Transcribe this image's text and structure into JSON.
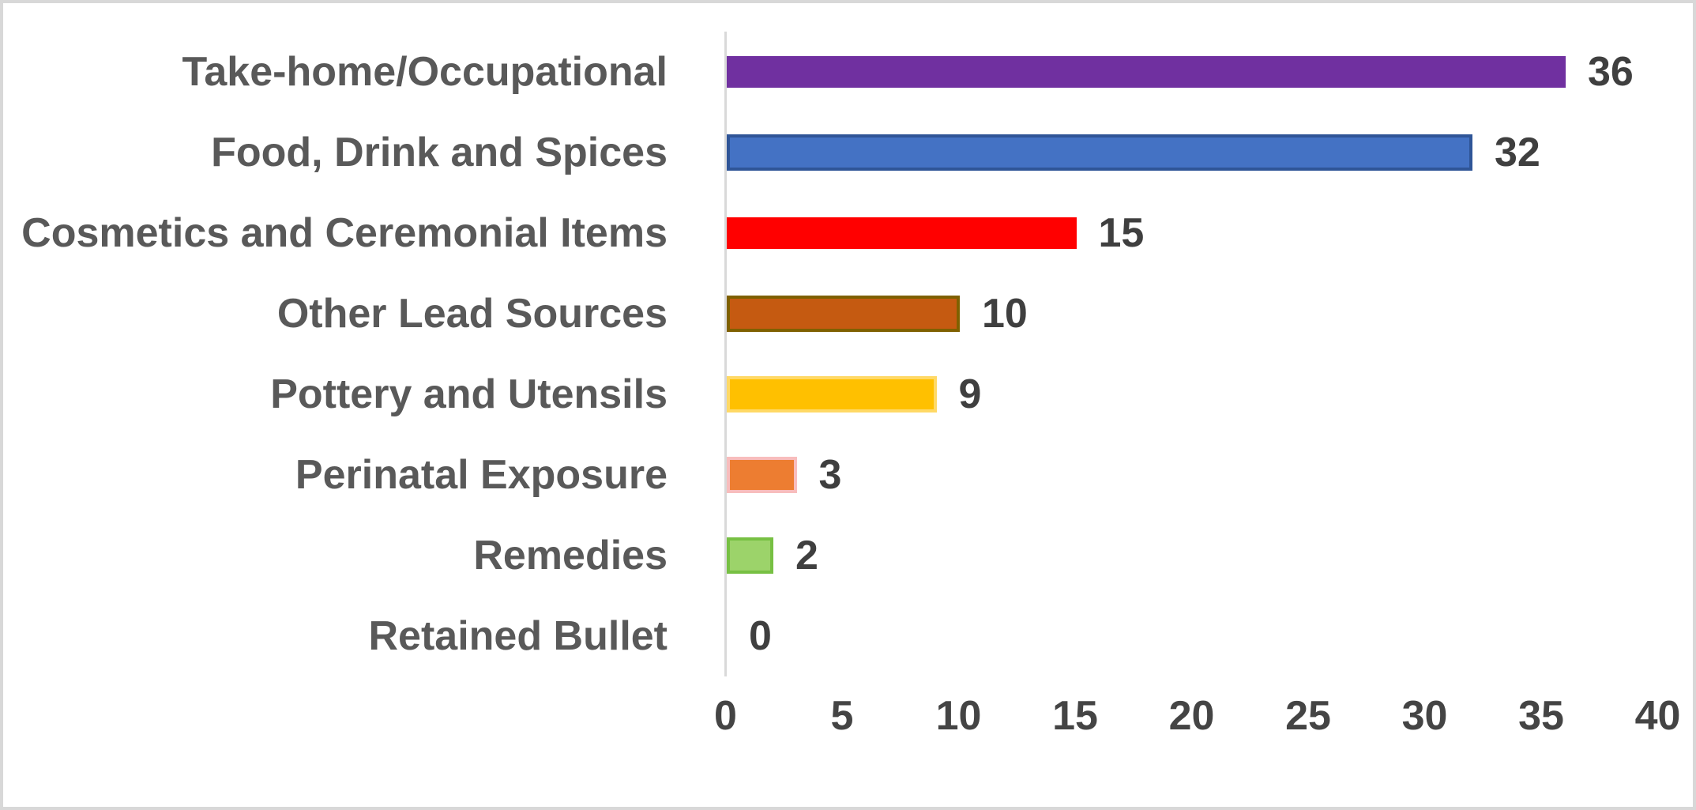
{
  "chart_data": {
    "type": "bar",
    "orientation": "horizontal",
    "title": "",
    "xlabel": "",
    "ylabel": "",
    "grid": false,
    "legend": false,
    "categories": [
      "Take-home/Occupational",
      "Food, Drink and Spices",
      "Cosmetics and Ceremonial Items",
      "Other Lead Sources",
      "Pottery and Utensils",
      "Perinatal Exposure",
      "Remedies",
      "Retained Bullet"
    ],
    "values": [
      36,
      32,
      15,
      10,
      9,
      3,
      2,
      0
    ],
    "value_labels": [
      "36",
      "32",
      "15",
      "10",
      "9",
      "3",
      "2",
      "0"
    ],
    "bar_colors": [
      "#7030a0",
      "#4472c4",
      "#ff0000",
      "#c55a11",
      "#ffc000",
      "#ed7d31",
      "#9cd36a",
      "#ffffff"
    ],
    "bar_border_colors": [
      null,
      "#2f5597",
      null,
      "#7f6000",
      "#ffd966",
      "#f8bdbd",
      "#77c043",
      null
    ],
    "xlim": [
      0,
      40
    ],
    "x_ticks": [
      0,
      5,
      10,
      15,
      20,
      25,
      30,
      35,
      40
    ]
  },
  "style_colors": {
    "category_text": "#595959",
    "value_text": "#3f3f3f",
    "tick_text": "#444444",
    "axis_line": "#d9d9d9",
    "frame_border": "#d8d8d8",
    "background": "#ffffff"
  }
}
